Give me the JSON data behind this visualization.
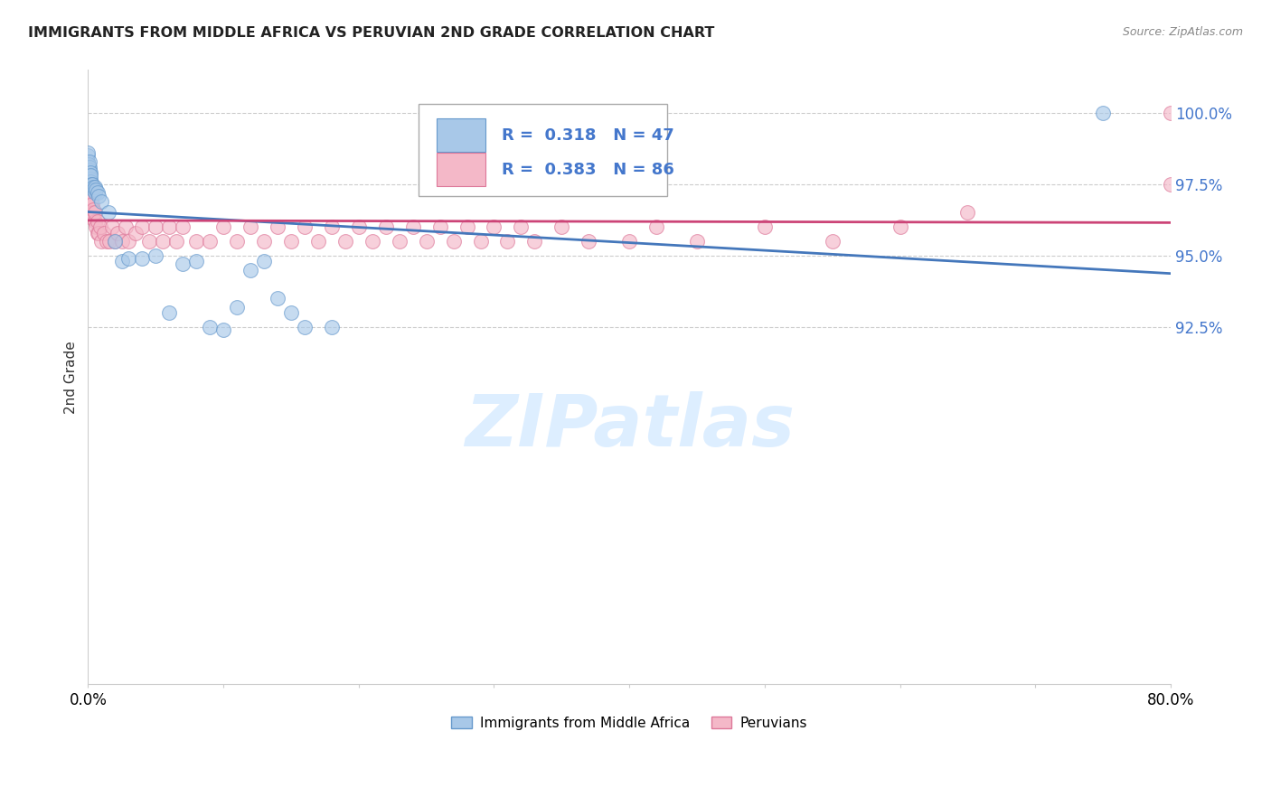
{
  "title": "IMMIGRANTS FROM MIDDLE AFRICA VS PERUVIAN 2ND GRADE CORRELATION CHART",
  "source": "Source: ZipAtlas.com",
  "ylabel": "2nd Grade",
  "y_ticks": [
    92.5,
    95.0,
    97.5,
    100.0
  ],
  "y_tick_labels": [
    "92.5%",
    "95.0%",
    "97.5%",
    "100.0%"
  ],
  "xlim": [
    0.0,
    80.0
  ],
  "ylim": [
    80.0,
    101.5
  ],
  "legend_label1": "Immigrants from Middle Africa",
  "legend_label2": "Peruvians",
  "R1": 0.318,
  "N1": 47,
  "R2": 0.383,
  "N2": 86,
  "blue_color": "#a8c8e8",
  "blue_edge_color": "#6699cc",
  "blue_line_color": "#4477bb",
  "pink_color": "#f4b8c8",
  "pink_edge_color": "#dd7799",
  "pink_line_color": "#cc4477",
  "watermark_color": "#ddeeff",
  "blue_scatter_x": [
    0.0,
    0.0,
    0.0,
    0.0,
    0.05,
    0.05,
    0.05,
    0.05,
    0.05,
    0.1,
    0.1,
    0.1,
    0.1,
    0.1,
    0.15,
    0.15,
    0.2,
    0.2,
    0.25,
    0.3,
    0.35,
    0.4,
    0.5,
    0.5,
    0.6,
    0.7,
    0.8,
    1.0,
    1.5,
    2.0,
    2.5,
    3.0,
    4.0,
    5.0,
    6.0,
    7.0,
    8.0,
    9.0,
    10.0,
    11.0,
    12.0,
    13.0,
    14.0,
    15.0,
    16.0,
    18.0,
    75.0
  ],
  "blue_scatter_y": [
    98.2,
    98.3,
    98.5,
    98.6,
    98.0,
    98.1,
    97.8,
    97.9,
    98.2,
    97.8,
    97.9,
    98.0,
    98.1,
    98.3,
    97.7,
    97.9,
    97.6,
    97.8,
    97.5,
    97.5,
    97.4,
    97.3,
    97.2,
    97.4,
    97.3,
    97.2,
    97.1,
    96.9,
    96.5,
    95.5,
    94.8,
    94.9,
    94.9,
    95.0,
    93.0,
    94.7,
    94.8,
    92.5,
    92.4,
    93.2,
    94.5,
    94.8,
    93.5,
    93.0,
    92.5,
    92.5,
    100.0
  ],
  "pink_scatter_x": [
    0.0,
    0.0,
    0.0,
    0.0,
    0.0,
    0.05,
    0.05,
    0.05,
    0.05,
    0.1,
    0.1,
    0.1,
    0.1,
    0.15,
    0.15,
    0.2,
    0.2,
    0.25,
    0.25,
    0.3,
    0.3,
    0.35,
    0.4,
    0.4,
    0.5,
    0.5,
    0.6,
    0.7,
    0.7,
    0.8,
    0.9,
    1.0,
    1.2,
    1.4,
    1.6,
    1.8,
    2.0,
    2.2,
    2.5,
    2.8,
    3.0,
    3.5,
    4.0,
    4.5,
    5.0,
    5.5,
    6.0,
    6.5,
    7.0,
    8.0,
    9.0,
    10.0,
    11.0,
    12.0,
    13.0,
    14.0,
    15.0,
    16.0,
    17.0,
    18.0,
    19.0,
    20.0,
    21.0,
    22.0,
    23.0,
    24.0,
    25.0,
    26.0,
    27.0,
    28.0,
    29.0,
    30.0,
    31.0,
    32.0,
    33.0,
    35.0,
    37.0,
    40.0,
    42.0,
    45.0,
    50.0,
    55.0,
    60.0,
    65.0,
    80.0,
    80.0
  ],
  "pink_scatter_y": [
    97.2,
    97.4,
    97.5,
    97.8,
    98.0,
    97.0,
    97.2,
    97.3,
    97.6,
    97.0,
    97.1,
    97.3,
    97.5,
    97.0,
    97.2,
    96.8,
    97.0,
    96.8,
    97.0,
    96.5,
    96.8,
    96.5,
    96.3,
    96.6,
    96.2,
    96.5,
    96.0,
    95.8,
    96.2,
    95.8,
    96.0,
    95.5,
    95.8,
    95.5,
    95.5,
    96.0,
    95.5,
    95.8,
    95.5,
    96.0,
    95.5,
    95.8,
    96.0,
    95.5,
    96.0,
    95.5,
    96.0,
    95.5,
    96.0,
    95.5,
    95.5,
    96.0,
    95.5,
    96.0,
    95.5,
    96.0,
    95.5,
    96.0,
    95.5,
    96.0,
    95.5,
    96.0,
    95.5,
    96.0,
    95.5,
    96.0,
    95.5,
    96.0,
    95.5,
    96.0,
    95.5,
    96.0,
    95.5,
    96.0,
    95.5,
    96.0,
    95.5,
    95.5,
    96.0,
    95.5,
    96.0,
    95.5,
    96.0,
    96.5,
    100.0,
    97.5
  ]
}
